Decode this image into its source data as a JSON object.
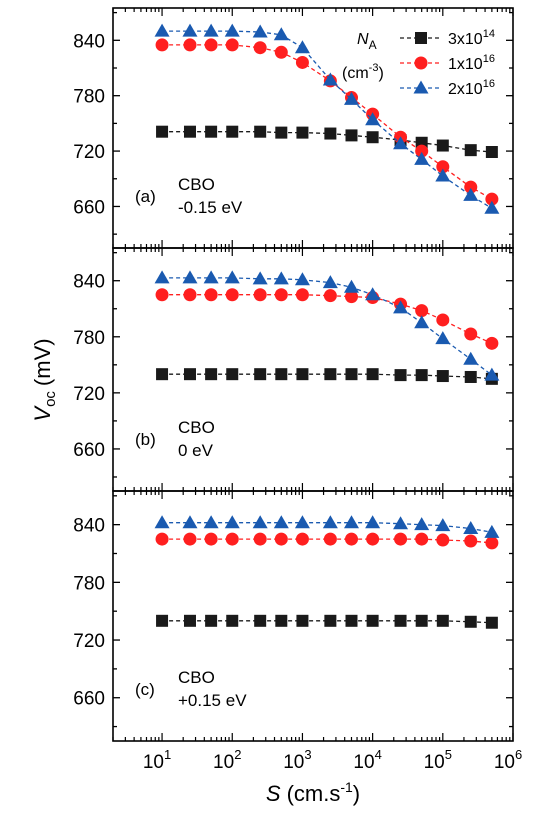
{
  "figure": {
    "y_axis_title": {
      "symbol": "V",
      "subscript": "oc",
      "unit": "(mV)"
    },
    "x_axis_title": {
      "symbol": "S",
      "unit": "(cm.s",
      "unit_sup": "-1",
      "unit_close": ")"
    },
    "legend": {
      "header_symbol": "N",
      "header_sub": "A",
      "header_unit": "(cm",
      "header_unit_sup": "-3",
      "header_unit_close": ")",
      "entries": [
        {
          "base": "3x10",
          "exp": "14"
        },
        {
          "base": "1x10",
          "exp": "16"
        },
        {
          "base": "2x10",
          "exp": "16"
        }
      ]
    }
  },
  "chart_data": {
    "type": "line",
    "x_scale": "log",
    "xlim": [
      2,
      1000000
    ],
    "ylim": [
      615,
      875
    ],
    "x_ticks": [
      {
        "value": 10,
        "base": "10",
        "exp": "1"
      },
      {
        "value": 100,
        "base": "10",
        "exp": "2"
      },
      {
        "value": 1000,
        "base": "10",
        "exp": "3"
      },
      {
        "value": 10000,
        "base": "10",
        "exp": "4"
      },
      {
        "value": 100000,
        "base": "10",
        "exp": "5"
      },
      {
        "value": 1000000,
        "base": "10",
        "exp": "6"
      }
    ],
    "y_ticks": [
      660,
      720,
      780,
      840
    ],
    "x": [
      10,
      25,
      50,
      100,
      250,
      500,
      1000,
      2500,
      5000,
      10000,
      25000,
      50000,
      100000,
      250000,
      500000
    ],
    "colors": {
      "s1": "#1a1a1a",
      "s2": "#ff1f1f",
      "s3": "#1a5ab0"
    },
    "markers": {
      "s1": "square",
      "s2": "circle",
      "s3": "triangle"
    },
    "panels": [
      {
        "label": "(a)",
        "annotation": [
          "CBO",
          "-0.15 eV"
        ],
        "series": [
          {
            "values": [
              741,
              741,
              741,
              741,
              741,
              740,
              740,
              739,
              737,
              735,
              732,
              729,
              726,
              721,
              719
            ]
          },
          {
            "values": [
              835,
              835,
              835,
              835,
              832,
              827,
              816,
              796,
              778,
              760,
              735,
              720,
              703,
              681,
              668
            ]
          },
          {
            "values": [
              850,
              850,
              850,
              850,
              849,
              846,
              832,
              797,
              776,
              754,
              728,
              711,
              693,
              672,
              658
            ]
          }
        ]
      },
      {
        "label": "(b)",
        "annotation": [
          "CBO",
          "0 eV"
        ],
        "series": [
          {
            "values": [
              740,
              740,
              740,
              740,
              740,
              740,
              740,
              740,
              740,
              740,
              739,
              739,
              738,
              737,
              735
            ]
          },
          {
            "values": [
              825,
              825,
              825,
              825,
              825,
              825,
              825,
              824,
              823,
              822,
              815,
              808,
              798,
              783,
              773
            ]
          },
          {
            "values": [
              843,
              843,
              843,
              843,
              842,
              842,
              841,
              838,
              833,
              825,
              811,
              795,
              778,
              756,
              739
            ]
          }
        ]
      },
      {
        "label": "(c)",
        "annotation": [
          "CBO",
          "+0.15 eV"
        ],
        "series": [
          {
            "values": [
              740,
              740,
              740,
              740,
              740,
              740,
              740,
              740,
              740,
              740,
              740,
              740,
              740,
              739,
              738
            ]
          },
          {
            "values": [
              825,
              825,
              825,
              825,
              825,
              825,
              825,
              825,
              825,
              825,
              825,
              825,
              824,
              823,
              821
            ]
          },
          {
            "values": [
              842,
              842,
              842,
              842,
              842,
              842,
              842,
              842,
              842,
              842,
              841,
              840,
              839,
              836,
              832
            ]
          }
        ]
      }
    ]
  }
}
